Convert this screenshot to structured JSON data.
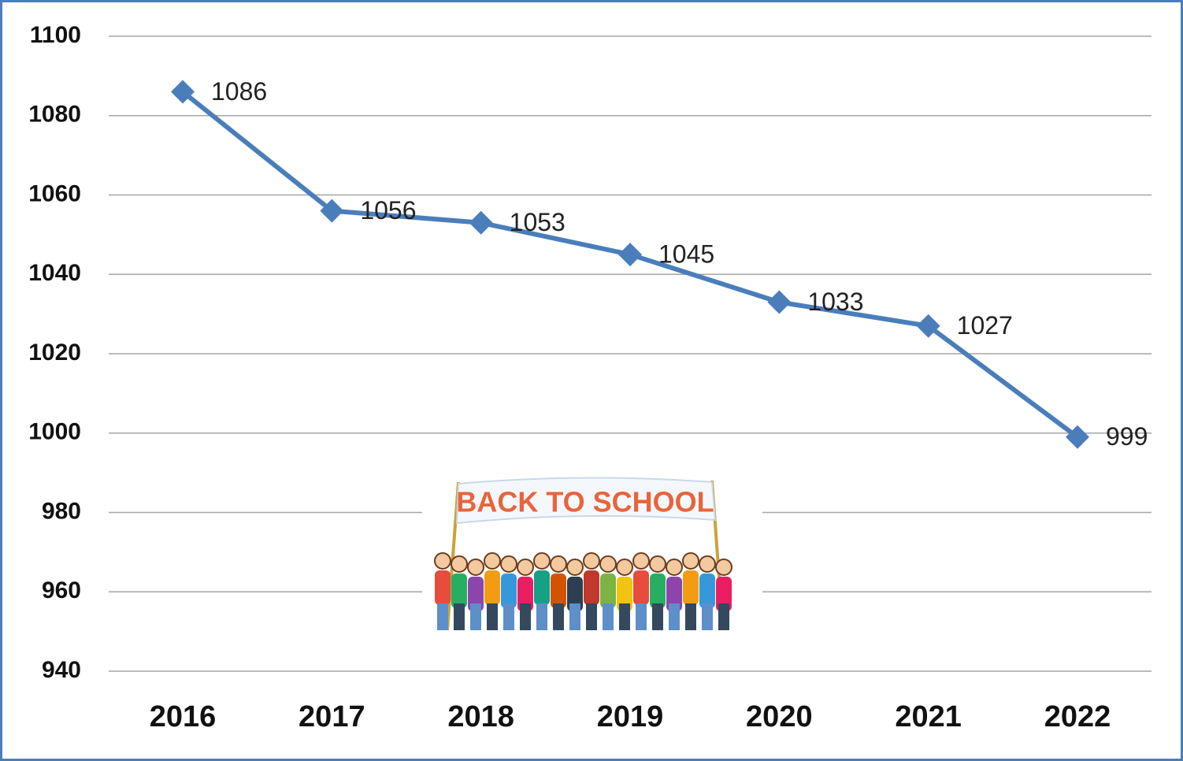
{
  "chart_data": {
    "type": "line",
    "categories": [
      "2016",
      "2017",
      "2018",
      "2019",
      "2020",
      "2021",
      "2022"
    ],
    "values": [
      1086,
      1056,
      1053,
      1045,
      1033,
      1027,
      999
    ],
    "color": "#4a7ebb",
    "ylim": [
      940,
      1100
    ],
    "yticks": [
      940,
      960,
      980,
      1000,
      1020,
      1040,
      1060,
      1080,
      1100
    ],
    "grid": true,
    "illustration_text": "BACK TO SCHOOL"
  }
}
